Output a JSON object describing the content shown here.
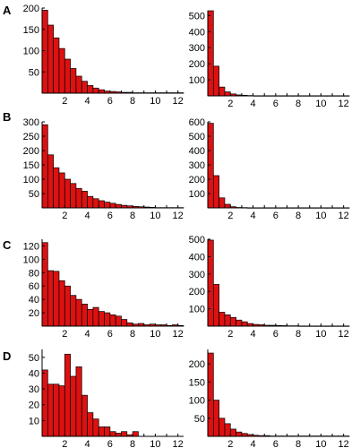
{
  "colors": {
    "bar": "#dd1111",
    "axis": "#000000"
  },
  "chart_data": [
    {
      "panel": "A",
      "type": "bar",
      "xlim": [
        0,
        12.5
      ],
      "ylim": [
        0,
        200
      ],
      "xticks": [
        2,
        4,
        6,
        8,
        10,
        12
      ],
      "yticks": [
        50,
        100,
        150,
        200
      ],
      "binwidth": 0.5,
      "values": [
        195,
        160,
        130,
        105,
        80,
        58,
        40,
        28,
        18,
        12,
        8,
        5,
        4,
        3,
        2,
        2,
        1,
        1,
        1,
        1,
        1,
        1,
        1,
        1,
        1
      ]
    },
    {
      "panel": "A",
      "type": "bar",
      "xlim": [
        0,
        12.5
      ],
      "ylim": [
        0,
        530
      ],
      "xticks": [
        2,
        4,
        6,
        8,
        10,
        12
      ],
      "yticks": [
        100,
        200,
        300,
        400,
        500
      ],
      "binwidth": 0.5,
      "values": [
        530,
        185,
        55,
        25,
        12,
        6,
        4,
        2,
        1,
        1,
        1,
        1,
        1,
        1,
        1,
        1,
        1,
        1,
        1,
        1,
        1,
        1,
        1,
        1,
        1
      ]
    },
    {
      "panel": "B",
      "type": "bar",
      "xlim": [
        0,
        12.5
      ],
      "ylim": [
        0,
        300
      ],
      "xticks": [
        2,
        4,
        6,
        8,
        10,
        12
      ],
      "yticks": [
        50,
        100,
        150,
        200,
        250,
        300
      ],
      "binwidth": 0.5,
      "values": [
        290,
        185,
        140,
        122,
        100,
        85,
        68,
        58,
        40,
        32,
        25,
        20,
        16,
        12,
        9,
        7,
        5,
        4,
        3,
        2,
        1,
        1,
        1,
        1,
        1
      ]
    },
    {
      "panel": "B",
      "type": "bar",
      "xlim": [
        0,
        12.5
      ],
      "ylim": [
        0,
        600
      ],
      "xticks": [
        2,
        4,
        6,
        8,
        10,
        12
      ],
      "yticks": [
        100,
        200,
        300,
        400,
        500,
        600
      ],
      "binwidth": 0.5,
      "values": [
        590,
        225,
        70,
        25,
        8,
        3,
        2,
        1,
        1,
        1,
        1,
        1,
        1,
        1,
        1,
        1,
        1,
        1,
        1,
        1,
        1,
        1,
        1,
        1,
        1
      ]
    },
    {
      "panel": "C",
      "type": "bar",
      "xlim": [
        0,
        12.5
      ],
      "ylim": [
        0,
        130
      ],
      "xticks": [
        2,
        4,
        6,
        8,
        10,
        12
      ],
      "yticks": [
        20,
        40,
        60,
        80,
        100,
        120
      ],
      "binwidth": 0.5,
      "values": [
        125,
        83,
        82,
        68,
        60,
        46,
        40,
        33,
        25,
        28,
        22,
        20,
        17,
        15,
        10,
        5,
        3,
        4,
        2,
        3,
        2,
        2,
        1,
        2,
        1
      ]
    },
    {
      "panel": "C",
      "type": "bar",
      "xlim": [
        0,
        12.5
      ],
      "ylim": [
        0,
        500
      ],
      "xticks": [
        2,
        4,
        6,
        8,
        10,
        12
      ],
      "yticks": [
        100,
        200,
        300,
        400,
        500
      ],
      "binwidth": 0.5,
      "values": [
        495,
        240,
        80,
        65,
        50,
        35,
        25,
        15,
        10,
        8,
        5,
        5,
        4,
        3,
        2,
        2,
        1,
        1,
        1,
        1,
        1,
        1,
        1,
        1,
        1
      ]
    },
    {
      "panel": "D",
      "type": "bar",
      "xlim": [
        0,
        12.5
      ],
      "ylim": [
        0,
        55
      ],
      "xticks": [
        2,
        4,
        6,
        8,
        10,
        12
      ],
      "yticks": [
        10,
        20,
        30,
        40,
        50
      ],
      "binwidth": 0.5,
      "values": [
        42,
        33,
        33,
        32,
        52,
        38,
        44,
        26,
        15,
        11,
        6,
        6,
        3,
        2,
        3,
        1,
        3,
        0,
        0,
        0,
        0,
        0,
        0,
        0,
        0
      ]
    },
    {
      "panel": "D",
      "type": "bar",
      "xlim": [
        0,
        12.5
      ],
      "ylim": [
        0,
        240
      ],
      "xticks": [
        2,
        4,
        6,
        8,
        10,
        12
      ],
      "yticks": [
        50,
        100,
        150,
        200
      ],
      "binwidth": 0.5,
      "values": [
        230,
        100,
        50,
        35,
        20,
        12,
        8,
        5,
        3,
        2,
        2,
        1,
        1,
        1,
        1,
        1,
        1,
        1,
        1,
        1,
        1,
        1,
        1,
        1,
        1
      ]
    }
  ]
}
